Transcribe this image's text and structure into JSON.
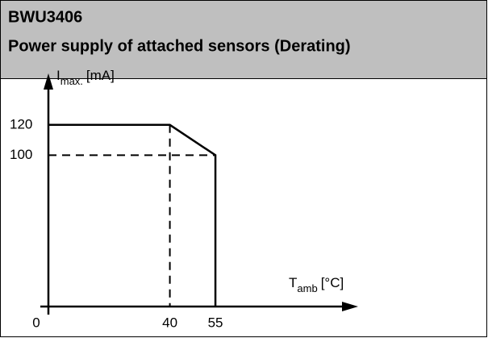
{
  "chart_data": {
    "type": "line",
    "title": "BWU3406",
    "subtitle": "Power supply of attached sensors (Derating)",
    "y_label": {
      "symbol": "I",
      "subscript": "max.",
      "unit": "[mA]"
    },
    "x_label": {
      "symbol": "T",
      "subscript": "amb",
      "unit": "[°C]"
    },
    "x": [
      0,
      40,
      55,
      55
    ],
    "series": [
      {
        "values": [
          120,
          120,
          100,
          0
        ],
        "color": "#000000"
      }
    ],
    "xlim": [
      0,
      102
    ],
    "ylim": [
      0,
      154
    ],
    "xticks": [
      0,
      40,
      55
    ],
    "yticks": [
      100,
      120
    ],
    "guides": true
  }
}
